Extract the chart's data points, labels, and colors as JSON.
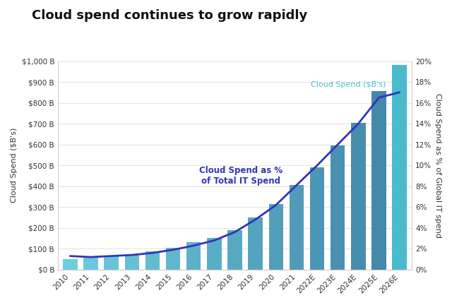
{
  "title": "Cloud spend continues to grow rapidly",
  "categories": [
    "2010",
    "2011",
    "2012",
    "2013",
    "2014",
    "2015",
    "2016",
    "2017",
    "2018",
    "2019",
    "2020",
    "2021",
    "2022E",
    "2023E",
    "2024E",
    "2025E",
    "2026E"
  ],
  "bar_values": [
    50,
    60,
    65,
    72,
    88,
    105,
    130,
    152,
    190,
    250,
    315,
    405,
    490,
    595,
    705,
    855,
    980
  ],
  "line_values": [
    1.3,
    1.2,
    1.3,
    1.4,
    1.6,
    1.9,
    2.3,
    2.8,
    3.6,
    4.8,
    6.2,
    8.1,
    10.0,
    12.0,
    14.0,
    16.5,
    17.0
  ],
  "bar_colors": [
    "#6DCEDD",
    "#6CCEDD",
    "#6BCFDE",
    "#69CFDE",
    "#68CFDE",
    "#66CEDC",
    "#64CBDA",
    "#62C8D8",
    "#5EC3D4",
    "#5BBCCE",
    "#58B5C8",
    "#55AABE",
    "#519FB4",
    "#4D94AA",
    "#4988A0",
    "#457E96",
    "#4AABCA"
  ],
  "line_color": "#3333BB",
  "ylabel_left": "Cloud Spend ($B's)",
  "ylabel_right": "Cloud Spend as % of Global IT spend",
  "ylim_left": [
    0,
    1000
  ],
  "ylim_right": [
    0,
    20
  ],
  "yticks_left": [
    0,
    100,
    200,
    300,
    400,
    500,
    600,
    700,
    800,
    900,
    1000
  ],
  "ytick_labels_left": [
    "$0 B",
    "$100 B",
    "$200 B",
    "$300 B",
    "$400 B",
    "$500 B",
    "$600 B",
    "$700 B",
    "$800 B",
    "$900 B",
    "$1,000 B"
  ],
  "yticks_right": [
    0,
    2,
    4,
    6,
    8,
    10,
    12,
    14,
    16,
    18,
    20
  ],
  "annotation_bar": "Cloud Spend ($B's)",
  "annotation_bar_color": "#40C4CC",
  "annotation_line": "Cloud Spend as %\nof Total IT Spend",
  "annotation_line_color": "#3333BB",
  "background_color": "#FFFFFF",
  "title_fontsize": 13,
  "axis_label_fontsize": 8,
  "tick_fontsize": 7.5,
  "annotation_fontsize": 8
}
